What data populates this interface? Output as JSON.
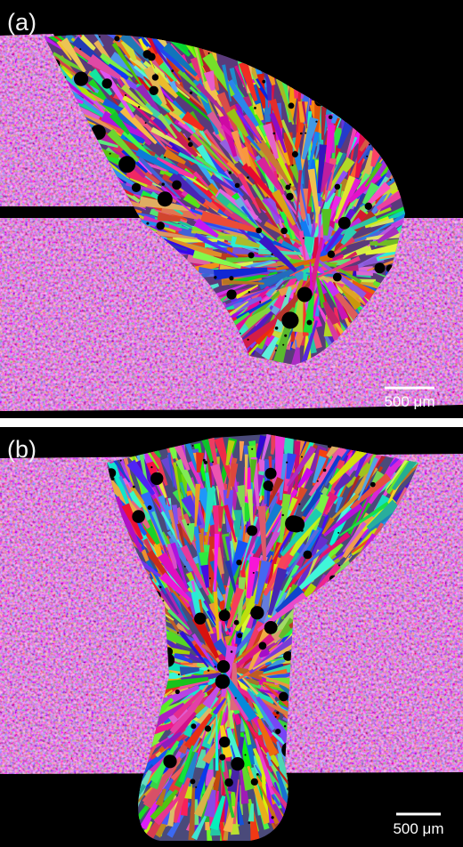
{
  "panels": [
    {
      "label": "(a)",
      "scale_bar": "500 μm"
    },
    {
      "label": "(b)",
      "scale_bar": "500 μm"
    }
  ]
}
